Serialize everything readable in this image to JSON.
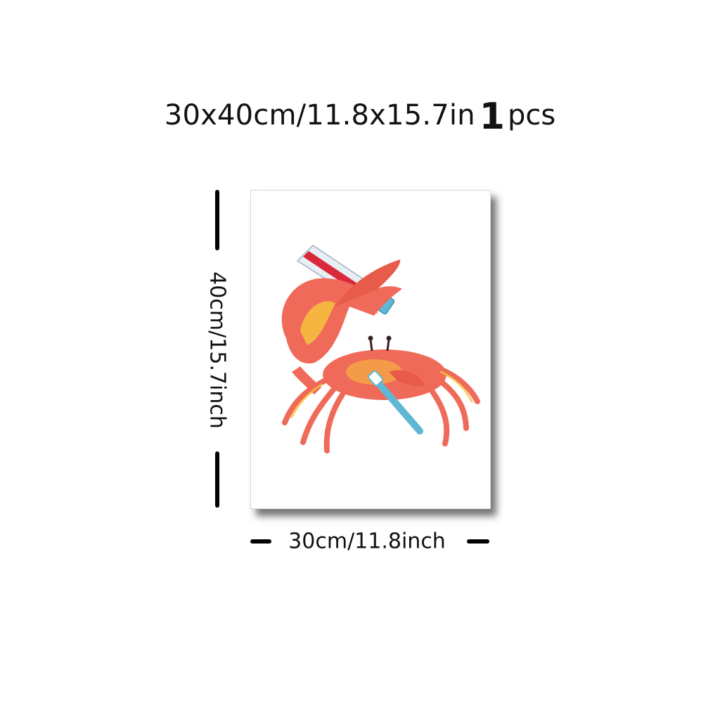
{
  "header": {
    "size_label": "30x40cm/11.8x15.7in",
    "quantity": "1",
    "quantity_unit": "pcs"
  },
  "dimensions": {
    "height_label": "40cm/15.7inch",
    "width_label": "30cm/11.8inch"
  },
  "artwork": {
    "subject": "crab-icon",
    "colors": {
      "crab_body": "#f06a5a",
      "crab_highlight": "#f6c23c",
      "toothbrush": "#5fb7d6",
      "tube": "#e8eef2",
      "tube_stripe": "#d8283a"
    }
  }
}
